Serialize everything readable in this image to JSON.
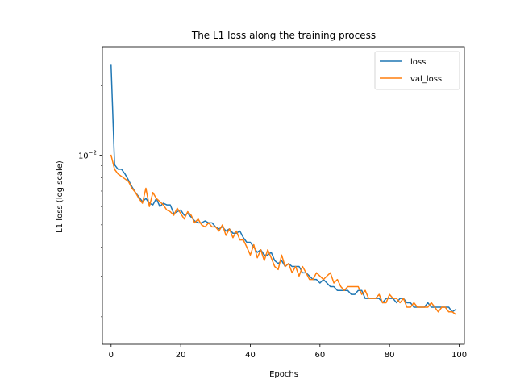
{
  "chart_data": {
    "type": "line",
    "title": "The L1 loss along the training process",
    "xlabel": "Epochs",
    "ylabel": "L1 loss (log scale)",
    "yscale": "log",
    "xlim": [
      -2.5,
      101.5
    ],
    "ylim": [
      0.00152,
      0.0295
    ],
    "x_ticks": [
      0,
      20,
      40,
      60,
      80,
      100
    ],
    "y_major_ticks": [
      {
        "value": 0.01,
        "base": "10",
        "exp": "−2"
      }
    ],
    "y_minor_ticks": [
      0.002,
      0.003,
      0.004,
      0.005,
      0.006,
      0.007,
      0.008,
      0.009,
      0.02
    ],
    "legend_position": "top-right",
    "grid": false,
    "series": [
      {
        "name": "loss",
        "color": "#1f77b4",
        "values": [
          0.0245,
          0.0091,
          0.0087,
          0.0087,
          0.0083,
          0.0078,
          0.0073,
          0.0069,
          0.0066,
          0.0063,
          0.0065,
          0.0062,
          0.0061,
          0.0065,
          0.006,
          0.0062,
          0.0061,
          0.0061,
          0.0056,
          0.0057,
          0.0058,
          0.0055,
          0.0056,
          0.0054,
          0.0052,
          0.0051,
          0.0051,
          0.0052,
          0.0051,
          0.0051,
          0.0049,
          0.0048,
          0.0049,
          0.0047,
          0.0048,
          0.0046,
          0.0046,
          0.0047,
          0.0044,
          0.0042,
          0.0042,
          0.004,
          0.0038,
          0.0039,
          0.0037,
          0.0037,
          0.0038,
          0.0035,
          0.0034,
          0.0035,
          0.0033,
          0.0034,
          0.0033,
          0.0033,
          0.0033,
          0.0031,
          0.0031,
          0.003,
          0.0029,
          0.0029,
          0.0028,
          0.0029,
          0.0028,
          0.0027,
          0.0027,
          0.0026,
          0.0026,
          0.0026,
          0.0026,
          0.0025,
          0.0025,
          0.0026,
          0.0026,
          0.0024,
          0.0024,
          0.0024,
          0.0024,
          0.0024,
          0.0023,
          0.0024,
          0.0024,
          0.0024,
          0.0023,
          0.0024,
          0.0024,
          0.0023,
          0.0023,
          0.0022,
          0.0022,
          0.0022,
          0.0022,
          0.0023,
          0.0022,
          0.0022,
          0.0022,
          0.0022,
          0.0022,
          0.0022,
          0.0021,
          0.00215
        ]
      },
      {
        "name": "val_loss",
        "color": "#ff7f0e",
        "values": [
          0.01,
          0.0087,
          0.0083,
          0.0081,
          0.0079,
          0.0077,
          0.0072,
          0.0069,
          0.0065,
          0.0062,
          0.0072,
          0.006,
          0.0069,
          0.0065,
          0.0063,
          0.0061,
          0.0058,
          0.0057,
          0.0055,
          0.0059,
          0.0056,
          0.0053,
          0.0057,
          0.0055,
          0.0051,
          0.0053,
          0.005,
          0.0049,
          0.0051,
          0.0049,
          0.0049,
          0.0047,
          0.005,
          0.0045,
          0.0048,
          0.0044,
          0.0047,
          0.0043,
          0.0043,
          0.004,
          0.0037,
          0.0041,
          0.0036,
          0.0039,
          0.0035,
          0.0039,
          0.0036,
          0.0033,
          0.0032,
          0.0037,
          0.0033,
          0.0034,
          0.0031,
          0.0033,
          0.003,
          0.0033,
          0.0031,
          0.0029,
          0.0029,
          0.0031,
          0.003,
          0.0029,
          0.003,
          0.0031,
          0.0028,
          0.0029,
          0.0027,
          0.0026,
          0.0027,
          0.0027,
          0.0027,
          0.0027,
          0.0025,
          0.0026,
          0.0024,
          0.0024,
          0.0024,
          0.0025,
          0.0023,
          0.0023,
          0.0025,
          0.0024,
          0.0024,
          0.0023,
          0.0024,
          0.0022,
          0.0022,
          0.0023,
          0.0022,
          0.0022,
          0.0022,
          0.0022,
          0.0023,
          0.0022,
          0.0021,
          0.0022,
          0.0022,
          0.0021,
          0.0021,
          0.00205
        ]
      }
    ]
  }
}
